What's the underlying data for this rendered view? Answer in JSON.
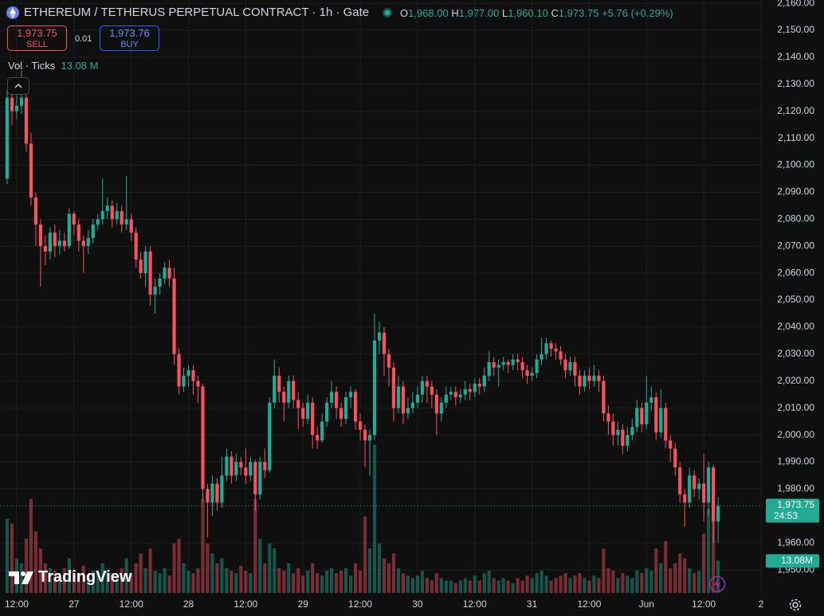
{
  "header": {
    "title": "ETHEREUM / TETHERUS PERPETUAL CONTRACT · 1h · Gate",
    "ohlc": [
      {
        "label": "O",
        "value": "1,968.00"
      },
      {
        "label": "H",
        "value": "1,977.00"
      },
      {
        "label": "L",
        "value": "1,960.10"
      },
      {
        "label": "C",
        "value": "1,973.75"
      }
    ],
    "change": "+5.76 (+0.29%)",
    "sell_price": "1,973.75",
    "sell_label": "SELL",
    "quantity": "0.01",
    "buy_price": "1,973.76",
    "buy_label": "BUY",
    "volume_title": "Vol · Ticks",
    "volume_value": "13.08 M"
  },
  "logo": "TradingView",
  "chart_data": {
    "type": "candlestick",
    "up_color": "#22ab94",
    "down_color": "#f7525f",
    "grid": true,
    "open": [
      2095,
      2125,
      2120,
      2122,
      2125,
      2108,
      2088,
      2078,
      2070,
      2068,
      2075,
      2070,
      2072,
      2070,
      2082,
      2078,
      2072,
      2070,
      2073,
      2078,
      2080,
      2083,
      2085,
      2080,
      2083,
      2078,
      2080,
      2075,
      2065,
      2060,
      2068,
      2052,
      2055,
      2058,
      2062,
      2058,
      2030,
      2018,
      2022,
      2024,
      2020,
      2018,
      1980,
      1975,
      1982,
      1975,
      1985,
      1992,
      1985,
      1990,
      1988,
      1985,
      1990,
      1978,
      1990,
      1987,
      2012,
      2022,
      2016,
      2012,
      2020,
      2013,
      2010,
      2006,
      2012,
      2000,
      1998,
      2005,
      2012,
      2016,
      2010,
      2006,
      2014,
      2016,
      2005,
      2002,
      1998,
      2000,
      2035,
      2038,
      2030,
      2025,
      2010,
      2018,
      2008,
      2010,
      2012,
      2015,
      2020,
      2018,
      2015,
      2008,
      2012,
      2015,
      2016,
      2014,
      2015,
      2017,
      2016,
      2019,
      2018,
      2022,
      2027,
      2025,
      2026,
      2027,
      2026,
      2028,
      2027,
      2024,
      2022,
      2023,
      2028,
      2030,
      2034,
      2032,
      2031,
      2028,
      2024,
      2027,
      2022,
      2018,
      2022,
      2020,
      2022,
      2020,
      2008,
      2005,
      2000,
      2002,
      1996,
      2000,
      2003,
      2010,
      2004,
      2012,
      2014,
      2001,
      2010,
      1998,
      1995,
      1988,
      1978,
      1975,
      1985,
      1980,
      1982,
      1975,
      1988,
      1968
    ],
    "high": [
      2128,
      2127,
      2126,
      2135,
      2126,
      2112,
      2090,
      2080,
      2074,
      2077,
      2078,
      2076,
      2075,
      2084,
      2083,
      2080,
      2074,
      2076,
      2080,
      2082,
      2095,
      2088,
      2087,
      2086,
      2085,
      2096,
      2082,
      2077,
      2068,
      2070,
      2070,
      2058,
      2060,
      2064,
      2065,
      2062,
      2032,
      2025,
      2026,
      2026,
      2022,
      2019,
      1982,
      1985,
      1984,
      1992,
      1995,
      1994,
      1993,
      1992,
      1995,
      1992,
      1991,
      1992,
      1995,
      2014,
      2028,
      2025,
      2018,
      2022,
      2022,
      2016,
      2012,
      2015,
      2014,
      2003,
      2008,
      2014,
      2020,
      2018,
      2012,
      2016,
      2018,
      2017,
      2008,
      2004,
      2002,
      2045,
      2042,
      2040,
      2032,
      2027,
      2022,
      2020,
      2014,
      2016,
      2018,
      2022,
      2022,
      2020,
      2017,
      2014,
      2018,
      2018,
      2018,
      2017,
      2020,
      2019,
      2021,
      2021,
      2025,
      2031,
      2029,
      2028,
      2029,
      2028,
      2030,
      2030,
      2029,
      2026,
      2025,
      2030,
      2036,
      2036,
      2035,
      2034,
      2033,
      2030,
      2029,
      2029,
      2024,
      2024,
      2025,
      2026,
      2024,
      2022,
      2011,
      2008,
      2005,
      2004,
      2003,
      2006,
      2013,
      2012,
      2022,
      2018,
      2016,
      2017,
      2012,
      2000,
      1997,
      1990,
      1980,
      1988,
      1987,
      1984,
      1993,
      1990,
      1989,
      1977
    ],
    "low": [
      2093,
      2115,
      2117,
      2119,
      2105,
      2085,
      2070,
      2055,
      2063,
      2065,
      2066,
      2067,
      2068,
      2069,
      2074,
      2068,
      2060,
      2067,
      2071,
      2076,
      2078,
      2080,
      2077,
      2078,
      2075,
      2076,
      2072,
      2062,
      2058,
      2055,
      2048,
      2045,
      2052,
      2056,
      2055,
      2026,
      2015,
      2016,
      2018,
      2015,
      2012,
      1975,
      1962,
      1970,
      1972,
      1973,
      1983,
      1982,
      1983,
      1985,
      1982,
      1983,
      1972,
      1976,
      1984,
      1986,
      2010,
      2012,
      2005,
      2010,
      2010,
      2002,
      2003,
      2004,
      1995,
      1995,
      1997,
      2003,
      2010,
      2006,
      2003,
      2004,
      2010,
      2002,
      1998,
      1988,
      1985,
      1998,
      2030,
      2022,
      2018,
      2005,
      2008,
      2004,
      2006,
      2008,
      2010,
      2012,
      2012,
      2010,
      2000,
      2005,
      2010,
      2013,
      2011,
      2012,
      2013,
      2013,
      2014,
      2015,
      2016,
      2020,
      2022,
      2018,
      2024,
      2023,
      2024,
      2024,
      2021,
      2019,
      2020,
      2021,
      2026,
      2028,
      2029,
      2028,
      2026,
      2021,
      2022,
      2018,
      2015,
      2016,
      2017,
      2018,
      2016,
      2005,
      2000,
      1996,
      1996,
      1993,
      1994,
      1998,
      2001,
      2001,
      2002,
      2009,
      1998,
      1999,
      1995,
      1990,
      1985,
      1975,
      1966,
      1973,
      1977,
      1976,
      1968,
      1970,
      1960,
      1960.1
    ],
    "close": [
      2125,
      2120,
      2122,
      2125,
      2108,
      2088,
      2078,
      2070,
      2068,
      2075,
      2070,
      2072,
      2070,
      2082,
      2078,
      2072,
      2070,
      2073,
      2078,
      2080,
      2083,
      2085,
      2080,
      2083,
      2078,
      2080,
      2075,
      2065,
      2060,
      2068,
      2052,
      2055,
      2058,
      2062,
      2058,
      2030,
      2018,
      2022,
      2024,
      2020,
      2018,
      1980,
      1975,
      1982,
      1975,
      1985,
      1992,
      1985,
      1990,
      1988,
      1985,
      1990,
      1978,
      1990,
      1987,
      2012,
      2022,
      2016,
      2012,
      2020,
      2013,
      2010,
      2006,
      2012,
      2000,
      1998,
      2005,
      2012,
      2016,
      2010,
      2006,
      2014,
      2016,
      2005,
      2002,
      1998,
      2000,
      2035,
      2038,
      2030,
      2025,
      2010,
      2018,
      2008,
      2010,
      2012,
      2015,
      2020,
      2018,
      2015,
      2008,
      2012,
      2015,
      2016,
      2014,
      2015,
      2017,
      2016,
      2019,
      2018,
      2022,
      2027,
      2025,
      2026,
      2027,
      2026,
      2028,
      2027,
      2024,
      2022,
      2023,
      2028,
      2030,
      2034,
      2032,
      2031,
      2028,
      2024,
      2027,
      2022,
      2018,
      2022,
      2020,
      2022,
      2020,
      2008,
      2005,
      2000,
      2002,
      1996,
      2000,
      2003,
      2010,
      2004,
      2012,
      2014,
      2001,
      2010,
      1998,
      1995,
      1988,
      1978,
      1975,
      1985,
      1980,
      1982,
      1975,
      1988,
      1968,
      1973.75
    ],
    "volume": [
      30,
      28,
      14,
      12,
      22,
      38,
      25,
      18,
      12,
      10,
      9,
      8,
      10,
      14,
      9,
      8,
      11,
      7,
      9,
      8,
      12,
      9,
      8,
      7,
      10,
      14,
      8,
      12,
      16,
      10,
      18,
      9,
      8,
      10,
      7,
      20,
      22,
      12,
      9,
      8,
      10,
      38,
      20,
      16,
      12,
      14,
      10,
      9,
      8,
      11,
      9,
      8,
      38,
      22,
      12,
      20,
      18,
      10,
      9,
      12,
      8,
      10,
      7,
      9,
      12,
      8,
      7,
      9,
      10,
      8,
      9,
      10,
      7,
      12,
      9,
      31,
      18,
      60,
      20,
      14,
      12,
      16,
      10,
      8,
      7,
      6,
      7,
      9,
      6,
      5,
      8,
      6,
      5,
      5,
      4,
      5,
      6,
      5,
      7,
      5,
      8,
      9,
      6,
      5,
      6,
      5,
      4,
      6,
      5,
      7,
      6,
      8,
      9,
      7,
      5,
      6,
      7,
      8,
      6,
      7,
      8,
      6,
      5,
      7,
      6,
      18,
      10,
      9,
      6,
      8,
      7,
      6,
      9,
      8,
      10,
      9,
      18,
      12,
      21,
      10,
      12,
      16,
      14,
      10,
      8,
      9,
      24,
      34,
      31,
      13.08
    ],
    "xlim": [
      -1.5,
      158.5
    ],
    "xticks": [
      {
        "value": 2,
        "label": "12:00"
      },
      {
        "value": 14,
        "label": "27"
      },
      {
        "value": 26,
        "label": "12:00"
      },
      {
        "value": 38,
        "label": "28"
      },
      {
        "value": 50,
        "label": "12:00"
      },
      {
        "value": 62,
        "label": "29"
      },
      {
        "value": 74,
        "label": "12:00"
      },
      {
        "value": 86,
        "label": "30"
      },
      {
        "value": 98,
        "label": "12:00"
      },
      {
        "value": 110,
        "label": "31"
      },
      {
        "value": 122,
        "label": "12:00"
      },
      {
        "value": 134,
        "label": "Jun"
      },
      {
        "value": 146,
        "label": "12:00"
      },
      {
        "value": 158,
        "label": "2"
      }
    ],
    "ylim": [
      1941.5,
      2161.2
    ],
    "yticks": [
      {
        "value": 2160,
        "label": "2,160.00"
      },
      {
        "value": 2150,
        "label": "2,150.00"
      },
      {
        "value": 2140,
        "label": "2,140.00"
      },
      {
        "value": 2130,
        "label": "2,130.00"
      },
      {
        "value": 2120,
        "label": "2,120.00"
      },
      {
        "value": 2110,
        "label": "2,110.00"
      },
      {
        "value": 2100,
        "label": "2,100.00"
      },
      {
        "value": 2090,
        "label": "2,090.00"
      },
      {
        "value": 2080,
        "label": "2,080.00"
      },
      {
        "value": 2070,
        "label": "2,070.00"
      },
      {
        "value": 2060,
        "label": "2,060.00"
      },
      {
        "value": 2050,
        "label": "2,050.00"
      },
      {
        "value": 2040,
        "label": "2,040.00"
      },
      {
        "value": 2030,
        "label": "2,030.00"
      },
      {
        "value": 2020,
        "label": "2,020.00"
      },
      {
        "value": 2010,
        "label": "2,010.00"
      },
      {
        "value": 2000,
        "label": "2,000.00"
      },
      {
        "value": 1990,
        "label": "1,990.00"
      },
      {
        "value": 1980,
        "label": "1,980.00"
      },
      {
        "value": 1960,
        "label": "1,960.00"
      },
      {
        "value": 1950,
        "label": "1,950.00"
      }
    ],
    "y2lim": [
      0,
      240
    ],
    "last_price_label": "1,973.75",
    "countdown": "24:53",
    "last_volume_label": "13.08M"
  }
}
